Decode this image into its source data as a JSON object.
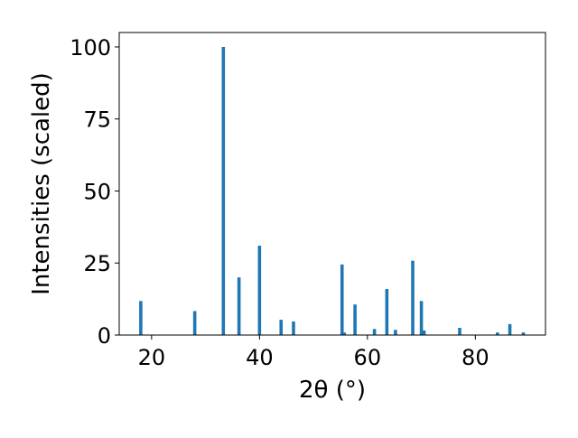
{
  "chart_data": {
    "type": "bar",
    "title": "",
    "xlabel": "2θ (°)",
    "ylabel": "Intensities (scaled)",
    "xlim": [
      14,
      93
    ],
    "ylim": [
      0,
      105
    ],
    "xticks": [
      20,
      40,
      60,
      80
    ],
    "yticks": [
      0,
      25,
      50,
      75,
      100
    ],
    "bar_width": 0.6,
    "color": "#1f77b4",
    "grid": false,
    "x": [
      18.0,
      28.0,
      33.3,
      36.2,
      40.0,
      44.0,
      46.3,
      55.3,
      55.7,
      57.7,
      61.3,
      63.6,
      65.2,
      68.4,
      70.0,
      70.5,
      77.1,
      84.1,
      86.4,
      88.9
    ],
    "values": [
      11.8,
      8.3,
      100,
      20,
      31,
      5.3,
      4.7,
      24.5,
      0.9,
      10.6,
      2.1,
      16,
      1.8,
      25.8,
      11.8,
      1.6,
      2.5,
      0.9,
      3.8,
      0.9
    ]
  }
}
